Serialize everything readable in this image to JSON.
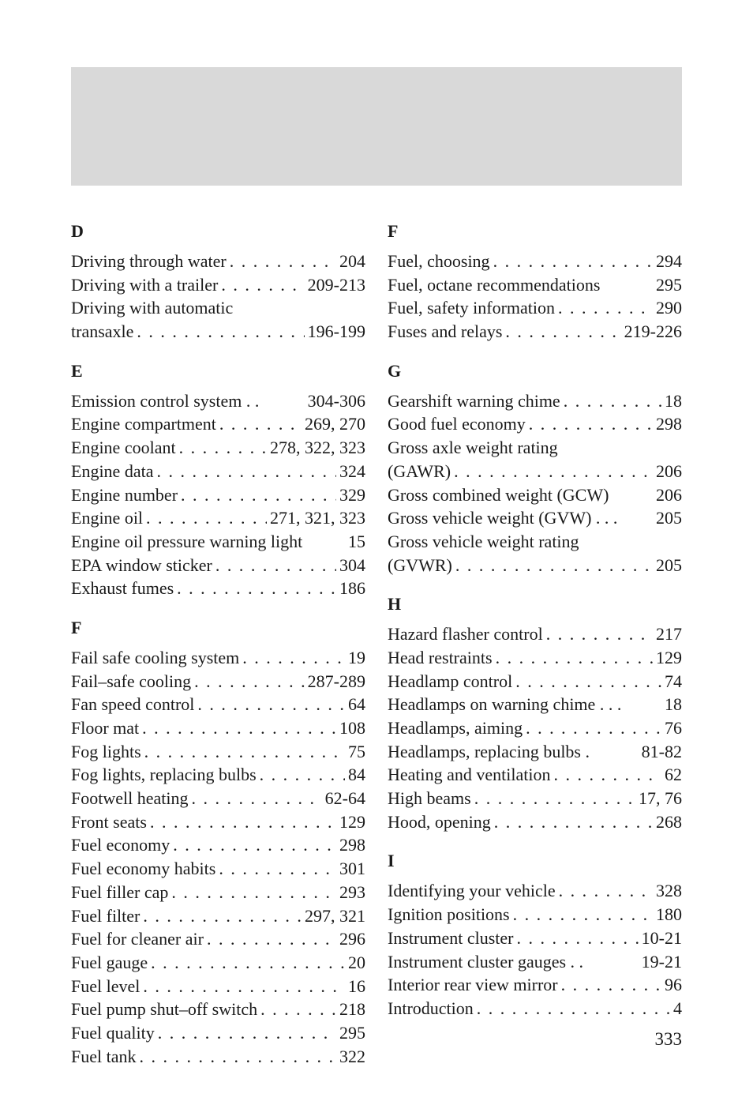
{
  "page_number": "333",
  "columns": [
    {
      "sections": [
        {
          "letter": "D",
          "entries": [
            {
              "label": "Driving through water",
              "page": "204"
            },
            {
              "label": "Driving with a trailer",
              "page": "209-213"
            },
            {
              "label": "Driving with automatic",
              "page": "",
              "nodots": true
            },
            {
              "label": "transaxle",
              "page": "196-199"
            }
          ]
        },
        {
          "letter": "E",
          "entries": [
            {
              "label": "Emission control system",
              "page": "304-306",
              "nodots": true,
              "gap": "  . . "
            },
            {
              "label": "Engine compartment",
              "page": "269, 270"
            },
            {
              "label": "Engine coolant",
              "page": "278, 322, 323"
            },
            {
              "label": "Engine data",
              "page": "324"
            },
            {
              "label": "Engine number",
              "page": "329"
            },
            {
              "label": "Engine oil",
              "page": "271, 321, 323"
            },
            {
              "label": "Engine oil pressure warning light",
              "page": "15",
              "nodots": true
            },
            {
              "label": "EPA window sticker",
              "page": "304"
            },
            {
              "label": "Exhaust fumes",
              "page": "186"
            }
          ]
        },
        {
          "letter": "F",
          "entries": [
            {
              "label": "Fail safe cooling system",
              "page": "19"
            },
            {
              "label": "Fail–safe cooling",
              "page": "287-289"
            },
            {
              "label": "Fan speed control",
              "page": "64"
            },
            {
              "label": "Floor mat",
              "page": "108"
            },
            {
              "label": "Fog lights",
              "page": "75"
            },
            {
              "label": "Fog lights, replacing bulbs",
              "page": "84"
            },
            {
              "label": "Footwell heating",
              "page": "62-64"
            },
            {
              "label": "Front seats",
              "page": "129"
            },
            {
              "label": "Fuel economy",
              "page": "298"
            },
            {
              "label": "Fuel economy habits",
              "page": "301"
            },
            {
              "label": "Fuel filler cap",
              "page": "293"
            },
            {
              "label": "Fuel filter",
              "page": "297, 321"
            },
            {
              "label": "Fuel for cleaner air",
              "page": "296"
            },
            {
              "label": "Fuel gauge",
              "page": "20"
            },
            {
              "label": "Fuel level",
              "page": "16"
            },
            {
              "label": "Fuel pump shut–off switch",
              "page": "218"
            },
            {
              "label": "Fuel quality",
              "page": "295"
            },
            {
              "label": "Fuel tank",
              "page": "322"
            }
          ]
        }
      ]
    },
    {
      "sections": [
        {
          "letter": "F",
          "entries": [
            {
              "label": "Fuel, choosing",
              "page": "294"
            },
            {
              "label": "Fuel, octane recommendations",
              "page": "295",
              "nodots": true
            },
            {
              "label": "Fuel, safety information",
              "page": "290"
            },
            {
              "label": "Fuses and relays",
              "page": "219-226"
            }
          ]
        },
        {
          "letter": "G",
          "entries": [
            {
              "label": "Gearshift warning chime",
              "page": "18"
            },
            {
              "label": "Good fuel economy",
              "page": "298"
            },
            {
              "label": "Gross axle weight rating",
              "page": "",
              "nodots": true
            },
            {
              "label": "(GAWR)",
              "page": "206"
            },
            {
              "label": "Gross combined weight (GCW)",
              "page": "206",
              "nodots": true
            },
            {
              "label": "Gross vehicle weight (GVW)",
              "page": "205",
              "nodots": true,
              "gap": " . . . "
            },
            {
              "label": "Gross vehicle weight rating",
              "page": "",
              "nodots": true
            },
            {
              "label": "(GVWR)",
              "page": "205"
            }
          ]
        },
        {
          "letter": "H",
          "entries": [
            {
              "label": "Hazard flasher control",
              "page": "217"
            },
            {
              "label": "Head restraints",
              "page": "129"
            },
            {
              "label": "Headlamp control",
              "page": "74"
            },
            {
              "label": "Headlamps on warning chime",
              "page": "18",
              "nodots": true,
              "gap": " . . . "
            },
            {
              "label": "Headlamps, aiming",
              "page": "76"
            },
            {
              "label": "Headlamps, replacing bulbs",
              "page": "81-82",
              "nodots": true,
              "gap": "  .  "
            },
            {
              "label": "Heating and ventilation",
              "page": "62"
            },
            {
              "label": "High beams",
              "page": "17, 76"
            },
            {
              "label": "Hood, opening",
              "page": "268"
            }
          ]
        },
        {
          "letter": "I",
          "entries": [
            {
              "label": "Identifying your vehicle",
              "page": "328"
            },
            {
              "label": "Ignition positions",
              "page": "180"
            },
            {
              "label": "Instrument cluster",
              "page": "10-21"
            },
            {
              "label": "Instrument cluster gauges",
              "page": "19-21",
              "nodots": true,
              "gap": "  . .  "
            },
            {
              "label": "Interior rear view mirror",
              "page": "96"
            },
            {
              "label": "Introduction",
              "page": "4"
            }
          ]
        }
      ]
    }
  ]
}
